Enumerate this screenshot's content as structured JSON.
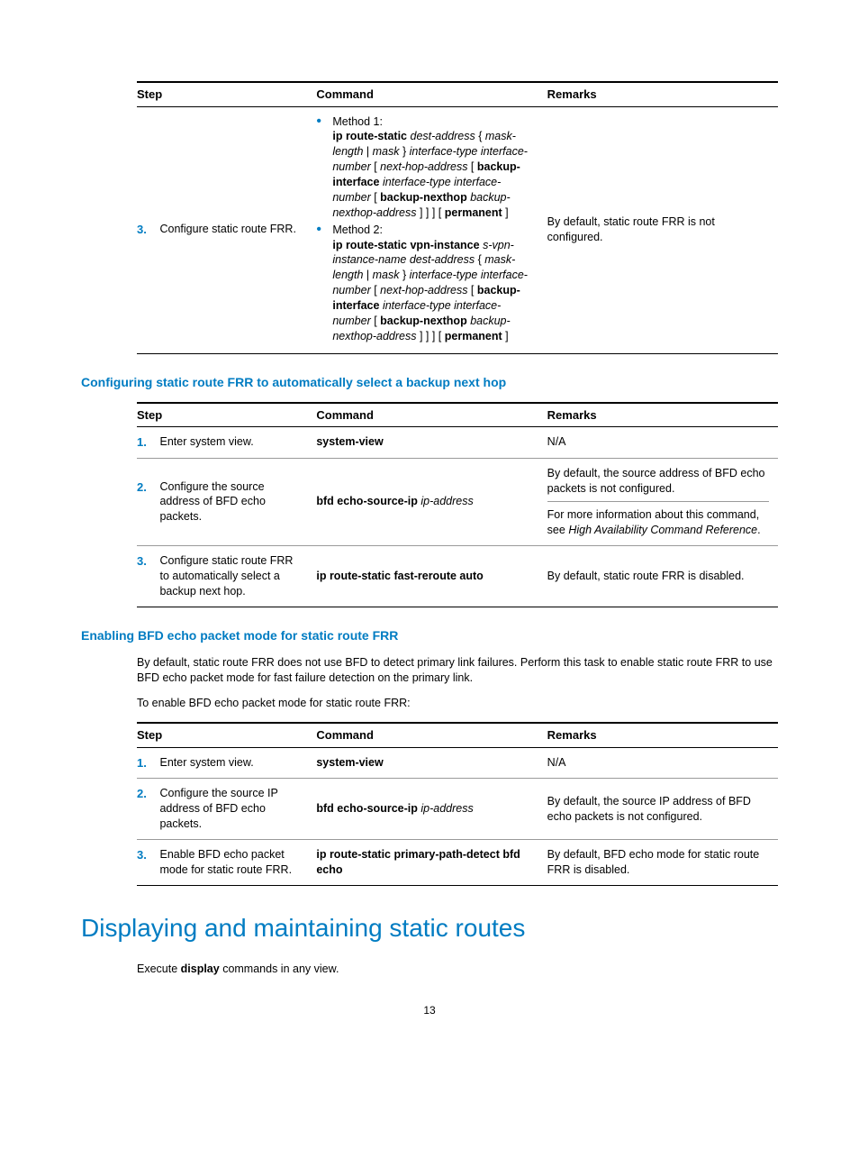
{
  "page_number": "13",
  "table1": {
    "headers": {
      "step": "Step",
      "command": "Command",
      "remarks": "Remarks"
    },
    "row": {
      "num": "3.",
      "desc": "Configure static route FRR.",
      "method1_label": "Method 1:",
      "method2_label": "Method 2:",
      "remarks": "By default, static route FRR is not configured."
    }
  },
  "section2_heading": "Configuring static route FRR to automatically select a backup next hop",
  "table2": {
    "headers": {
      "step": "Step",
      "command": "Command",
      "remarks": "Remarks"
    },
    "row1": {
      "num": "1.",
      "desc": "Enter system view.",
      "command": "system-view",
      "remarks": "N/A"
    },
    "row2": {
      "num": "2.",
      "desc": "Configure the source address of BFD echo packets.",
      "cmd_bold": "bfd echo-source-ip",
      "cmd_ital": " ip-address",
      "remarks_a": "By default, the source address of BFD echo packets is not configured.",
      "remarks_b1": "For more information about this command, see ",
      "remarks_b2": "High Availability Command Reference",
      "remarks_b3": "."
    },
    "row3": {
      "num": "3.",
      "desc": "Configure static route FRR to automatically select a backup next hop.",
      "command": "ip route-static fast-reroute auto",
      "remarks": "By default, static route FRR is disabled."
    }
  },
  "section3_heading": "Enabling BFD echo packet mode for static route FRR",
  "section3_p1": "By default, static route FRR does not use BFD to detect primary link failures. Perform this task to enable static route FRR to use BFD echo packet mode for fast failure detection on the primary link.",
  "section3_p2": "To enable BFD echo packet mode for static route FRR:",
  "table3": {
    "headers": {
      "step": "Step",
      "command": "Command",
      "remarks": "Remarks"
    },
    "row1": {
      "num": "1.",
      "desc": "Enter system view.",
      "command": "system-view",
      "remarks": "N/A"
    },
    "row2": {
      "num": "2.",
      "desc": "Configure the source IP address of BFD echo packets.",
      "cmd_bold": "bfd echo-source-ip",
      "cmd_ital": " ip-address",
      "remarks": "By default, the source IP address of BFD echo packets is not configured."
    },
    "row3": {
      "num": "3.",
      "desc": "Enable BFD echo packet mode for static route FRR.",
      "command": "ip route-static primary-path-detect bfd echo",
      "remarks": "By default, BFD echo mode for static route FRR is disabled."
    }
  },
  "main_heading": "Displaying and maintaining static routes",
  "main_p_pre": "Execute ",
  "main_p_bold": "display",
  "main_p_post": " commands in any view.",
  "colors": {
    "accent": "#007cc2",
    "text": "#000000",
    "rule_heavy": "#000000",
    "rule_light": "#9a9a9a",
    "background": "#ffffff"
  },
  "typography": {
    "body_font": "Arial, Helvetica, sans-serif",
    "body_size_pt": 13,
    "h1_size_pt": 28,
    "h3_size_pt": 14
  }
}
